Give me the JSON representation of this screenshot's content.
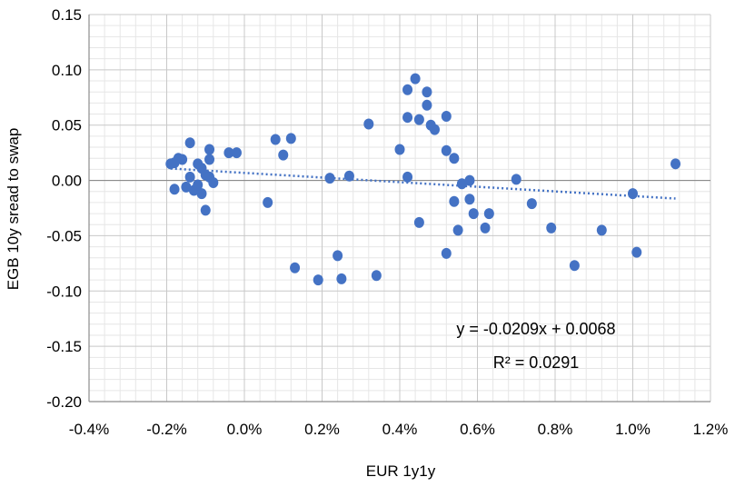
{
  "chart_data": {
    "type": "scatter",
    "title": "",
    "xlabel": "EUR 1y1y",
    "ylabel": "EGB 10y sread to swap",
    "xlim": [
      -0.4,
      1.2
    ],
    "ylim": [
      -0.2,
      0.15
    ],
    "x_unit": "%",
    "x_ticks": [
      "-0.4%",
      "-0.2%",
      "0.0%",
      "0.2%",
      "0.4%",
      "0.6%",
      "0.8%",
      "1.0%",
      "1.2%"
    ],
    "y_ticks": [
      "0.15",
      "0.10",
      "0.05",
      "0.00",
      "-0.05",
      "-0.10",
      "-0.15",
      "-0.20"
    ],
    "grid": true,
    "marker_color": "#4472C4",
    "series": [
      {
        "points": [
          {
            "x": -0.19,
            "y": 0.015
          },
          {
            "x": -0.18,
            "y": 0.016
          },
          {
            "x": -0.18,
            "y": -0.008
          },
          {
            "x": -0.17,
            "y": 0.02
          },
          {
            "x": -0.16,
            "y": 0.019
          },
          {
            "x": -0.14,
            "y": 0.034
          },
          {
            "x": -0.14,
            "y": 0.003
          },
          {
            "x": -0.15,
            "y": -0.006
          },
          {
            "x": -0.13,
            "y": -0.009
          },
          {
            "x": -0.12,
            "y": 0.015
          },
          {
            "x": -0.12,
            "y": -0.004
          },
          {
            "x": -0.11,
            "y": 0.011
          },
          {
            "x": -0.11,
            "y": -0.012
          },
          {
            "x": -0.1,
            "y": 0.005
          },
          {
            "x": -0.1,
            "y": -0.027
          },
          {
            "x": -0.09,
            "y": 0.028
          },
          {
            "x": -0.09,
            "y": 0.019
          },
          {
            "x": -0.09,
            "y": 0.003
          },
          {
            "x": -0.08,
            "y": -0.002
          },
          {
            "x": -0.04,
            "y": 0.025
          },
          {
            "x": -0.02,
            "y": 0.025
          },
          {
            "x": 0.06,
            "y": -0.02
          },
          {
            "x": 0.08,
            "y": 0.037
          },
          {
            "x": 0.1,
            "y": 0.023
          },
          {
            "x": 0.12,
            "y": 0.038
          },
          {
            "x": 0.13,
            "y": -0.079
          },
          {
            "x": 0.19,
            "y": -0.09
          },
          {
            "x": 0.22,
            "y": 0.002
          },
          {
            "x": 0.24,
            "y": -0.068
          },
          {
            "x": 0.25,
            "y": -0.089
          },
          {
            "x": 0.27,
            "y": 0.004
          },
          {
            "x": 0.32,
            "y": 0.051
          },
          {
            "x": 0.34,
            "y": -0.086
          },
          {
            "x": 0.4,
            "y": 0.028
          },
          {
            "x": 0.42,
            "y": 0.057
          },
          {
            "x": 0.42,
            "y": 0.082
          },
          {
            "x": 0.42,
            "y": 0.003
          },
          {
            "x": 0.44,
            "y": 0.092
          },
          {
            "x": 0.45,
            "y": 0.055
          },
          {
            "x": 0.45,
            "y": -0.038
          },
          {
            "x": 0.47,
            "y": 0.08
          },
          {
            "x": 0.47,
            "y": 0.068
          },
          {
            "x": 0.48,
            "y": 0.05
          },
          {
            "x": 0.49,
            "y": 0.046
          },
          {
            "x": 0.52,
            "y": 0.058
          },
          {
            "x": 0.52,
            "y": 0.027
          },
          {
            "x": 0.52,
            "y": -0.066
          },
          {
            "x": 0.54,
            "y": 0.02
          },
          {
            "x": 0.54,
            "y": -0.019
          },
          {
            "x": 0.55,
            "y": -0.045
          },
          {
            "x": 0.56,
            "y": -0.003
          },
          {
            "x": 0.58,
            "y": 0.0
          },
          {
            "x": 0.58,
            "y": -0.017
          },
          {
            "x": 0.59,
            "y": -0.03
          },
          {
            "x": 0.62,
            "y": -0.043
          },
          {
            "x": 0.63,
            "y": -0.03
          },
          {
            "x": 0.7,
            "y": 0.001
          },
          {
            "x": 0.74,
            "y": -0.021
          },
          {
            "x": 0.79,
            "y": -0.043
          },
          {
            "x": 0.85,
            "y": -0.077
          },
          {
            "x": 0.92,
            "y": -0.045
          },
          {
            "x": 1.0,
            "y": -0.012
          },
          {
            "x": 1.01,
            "y": -0.065
          },
          {
            "x": 1.11,
            "y": 0.015
          }
        ]
      }
    ],
    "trendline": {
      "slope": -0.0209,
      "intercept": 0.0068,
      "style": "dotted",
      "color": "#4472C4",
      "x_range": [
        -0.19,
        1.11
      ]
    },
    "annotations": [
      "y = -0.0209x + 0.0068",
      "R² = 0.0291"
    ]
  }
}
